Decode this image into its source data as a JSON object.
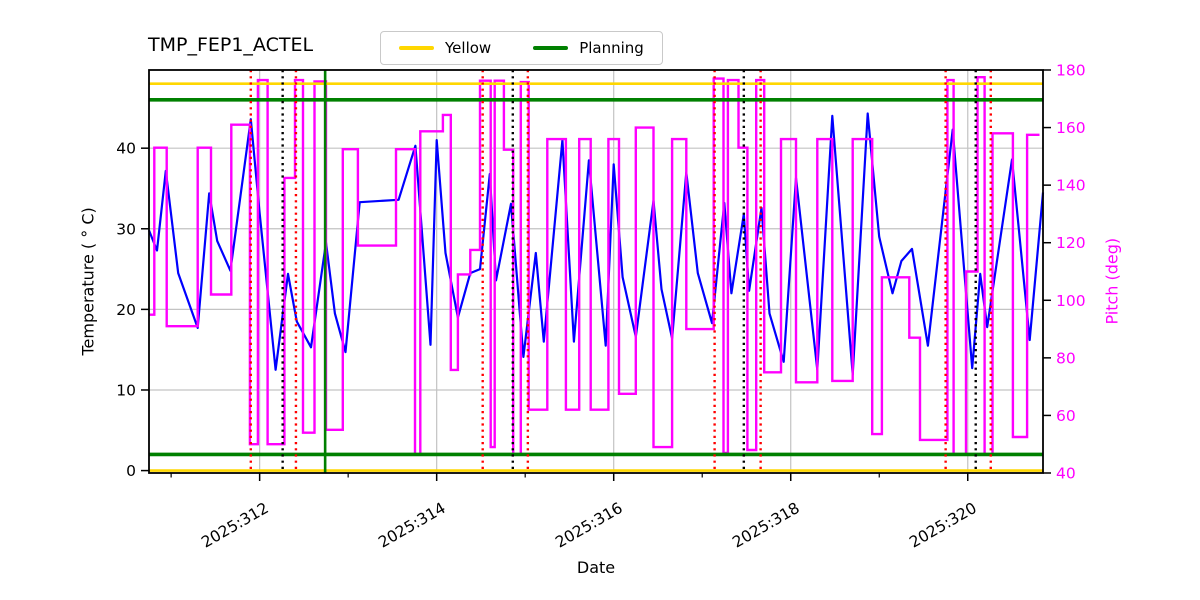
{
  "chart_data": {
    "type": "line",
    "title": "TMP_FEP1_ACTEL",
    "xlabel": "Date",
    "grid": true,
    "colors": {
      "temperature": "#0000ff",
      "pitch": "#ff00ff",
      "yellow_limit": "#ffd700",
      "planning_limit": "#008000",
      "event_red": "#ff0000",
      "event_black": "#000000",
      "event_green": "#008000",
      "grid": "#c3c3c3",
      "frame": "#000000"
    },
    "x_axis": {
      "label": "Date",
      "lim": [
        310.75,
        320.85
      ],
      "major_ticks": [
        {
          "day": 312,
          "label": "2025:312"
        },
        {
          "day": 314,
          "label": "2025:314"
        },
        {
          "day": 316,
          "label": "2025:316"
        },
        {
          "day": 318,
          "label": "2025:318"
        },
        {
          "day": 320,
          "label": "2025:320"
        }
      ],
      "minor_tick_days": [
        311,
        313,
        315,
        317,
        319
      ]
    },
    "y_left": {
      "label": "Temperature ( ° C)",
      "lim": [
        -0.3,
        49.7
      ],
      "ticks": [
        0,
        10,
        20,
        30,
        40
      ],
      "color": "#000000"
    },
    "y_right": {
      "label": "Pitch (deg)",
      "lim": [
        40,
        180
      ],
      "ticks": [
        40,
        60,
        80,
        100,
        120,
        140,
        160,
        180
      ],
      "color": "#ff00ff"
    },
    "legend": [
      {
        "label": "Yellow",
        "color": "#ffd700"
      },
      {
        "label": "Planning",
        "color": "#008000"
      }
    ],
    "limit_lines": [
      {
        "name": "yellow-high",
        "value": 48,
        "axis": "left",
        "color": "#ffd700",
        "width": 2.6
      },
      {
        "name": "yellow-low",
        "value": 0,
        "axis": "left",
        "color": "#ffd700",
        "width": 2.6
      },
      {
        "name": "planning-high",
        "value": 46,
        "axis": "left",
        "color": "#008000",
        "width": 3.6
      },
      {
        "name": "planning-low",
        "value": 2,
        "axis": "left",
        "color": "#008000",
        "width": 3.6
      }
    ],
    "event_lines": {
      "red_dotted": [
        311.9,
        312.41,
        314.52,
        315.03,
        317.14,
        317.66,
        319.75,
        320.26
      ],
      "black_dotted": [
        312.26,
        314.86,
        317.47,
        320.09
      ],
      "green_solid": [
        312.74
      ]
    },
    "series": [
      {
        "name": "temperature",
        "axis": "left",
        "mode": "line",
        "color": "#0000ff",
        "width": 2.2,
        "points": [
          [
            310.75,
            29.8
          ],
          [
            310.84,
            27.3
          ],
          [
            310.94,
            37.2
          ],
          [
            311.08,
            24.5
          ],
          [
            311.3,
            17.7
          ],
          [
            311.43,
            34.4
          ],
          [
            311.52,
            28.5
          ],
          [
            311.67,
            24.8
          ],
          [
            311.9,
            43.6
          ],
          [
            312.0,
            32.0
          ],
          [
            312.18,
            12.5
          ],
          [
            312.32,
            24.4
          ],
          [
            312.42,
            18.5
          ],
          [
            312.58,
            15.3
          ],
          [
            312.75,
            28.3
          ],
          [
            312.85,
            19.5
          ],
          [
            312.97,
            14.7
          ],
          [
            313.13,
            33.3
          ],
          [
            313.57,
            33.6
          ],
          [
            313.76,
            40.3
          ],
          [
            313.93,
            15.6
          ],
          [
            314.0,
            41.0
          ],
          [
            314.1,
            27.0
          ],
          [
            314.24,
            19.0
          ],
          [
            314.38,
            24.5
          ],
          [
            314.49,
            25.0
          ],
          [
            314.6,
            36.8
          ],
          [
            314.67,
            23.6
          ],
          [
            314.84,
            33.1
          ],
          [
            314.98,
            14.1
          ],
          [
            315.12,
            27.0
          ],
          [
            315.21,
            16.0
          ],
          [
            315.42,
            41.0
          ],
          [
            315.55,
            16.0
          ],
          [
            315.72,
            38.5
          ],
          [
            315.91,
            15.5
          ],
          [
            316.0,
            38.0
          ],
          [
            316.1,
            24.0
          ],
          [
            316.25,
            16.6
          ],
          [
            316.45,
            33.5
          ],
          [
            316.54,
            22.5
          ],
          [
            316.66,
            16.4
          ],
          [
            316.82,
            37.0
          ],
          [
            316.95,
            24.5
          ],
          [
            317.11,
            18.3
          ],
          [
            317.25,
            33.2
          ],
          [
            317.33,
            22.0
          ],
          [
            317.47,
            31.8
          ],
          [
            317.53,
            22.3
          ],
          [
            317.67,
            32.6
          ],
          [
            317.76,
            19.5
          ],
          [
            317.92,
            13.5
          ],
          [
            318.06,
            36.3
          ],
          [
            318.3,
            12.5
          ],
          [
            318.47,
            44.0
          ],
          [
            318.7,
            11.9
          ],
          [
            318.87,
            44.3
          ],
          [
            319.0,
            29.0
          ],
          [
            319.15,
            22.0
          ],
          [
            319.25,
            26.0
          ],
          [
            319.37,
            27.5
          ],
          [
            319.55,
            15.5
          ],
          [
            319.83,
            42.3
          ],
          [
            320.05,
            12.7
          ],
          [
            320.14,
            24.4
          ],
          [
            320.22,
            17.8
          ],
          [
            320.5,
            38.6
          ],
          [
            320.7,
            16.2
          ],
          [
            320.85,
            34.5
          ]
        ]
      },
      {
        "name": "pitch",
        "axis": "right",
        "mode": "step",
        "color": "#ff00ff",
        "width": 2.4,
        "end_day": 320.81,
        "points": [
          [
            310.75,
            95
          ],
          [
            310.81,
            153
          ],
          [
            310.95,
            91
          ],
          [
            311.3,
            153
          ],
          [
            311.45,
            102
          ],
          [
            311.68,
            161
          ],
          [
            311.89,
            50
          ],
          [
            311.98,
            176.5
          ],
          [
            312.09,
            50
          ],
          [
            312.28,
            142.5
          ],
          [
            312.4,
            176.5
          ],
          [
            312.49,
            54
          ],
          [
            312.62,
            176
          ],
          [
            312.75,
            55
          ],
          [
            312.94,
            152.5
          ],
          [
            313.11,
            119
          ],
          [
            313.54,
            152.5
          ],
          [
            313.755,
            46.5
          ],
          [
            313.815,
            158.7
          ],
          [
            314.07,
            164.4
          ],
          [
            314.16,
            75.8
          ],
          [
            314.24,
            109
          ],
          [
            314.38,
            117.5
          ],
          [
            314.49,
            176.3
          ],
          [
            314.61,
            49
          ],
          [
            314.655,
            176.3
          ],
          [
            314.76,
            152.3
          ],
          [
            314.865,
            46.5
          ],
          [
            314.95,
            175.8
          ],
          [
            315.04,
            62
          ],
          [
            315.25,
            156
          ],
          [
            315.46,
            62
          ],
          [
            315.61,
            156
          ],
          [
            315.74,
            62
          ],
          [
            315.94,
            156
          ],
          [
            316.06,
            67.5
          ],
          [
            316.25,
            160
          ],
          [
            316.45,
            49
          ],
          [
            316.66,
            156
          ],
          [
            316.82,
            90
          ],
          [
            317.13,
            177
          ],
          [
            317.24,
            47
          ],
          [
            317.29,
            176.5
          ],
          [
            317.41,
            153
          ],
          [
            317.51,
            48
          ],
          [
            317.61,
            176.5
          ],
          [
            317.7,
            75
          ],
          [
            317.89,
            156
          ],
          [
            318.06,
            71.5
          ],
          [
            318.3,
            156
          ],
          [
            318.47,
            72
          ],
          [
            318.7,
            156
          ],
          [
            318.92,
            53.5
          ],
          [
            319.03,
            108
          ],
          [
            319.34,
            87
          ],
          [
            319.46,
            51.5
          ],
          [
            319.77,
            176.5
          ],
          [
            319.84,
            46.5
          ],
          [
            319.98,
            110
          ],
          [
            320.11,
            177.5
          ],
          [
            320.19,
            46.5
          ],
          [
            320.28,
            158
          ],
          [
            320.51,
            52.5
          ],
          [
            320.67,
            157.5
          ]
        ]
      }
    ]
  }
}
